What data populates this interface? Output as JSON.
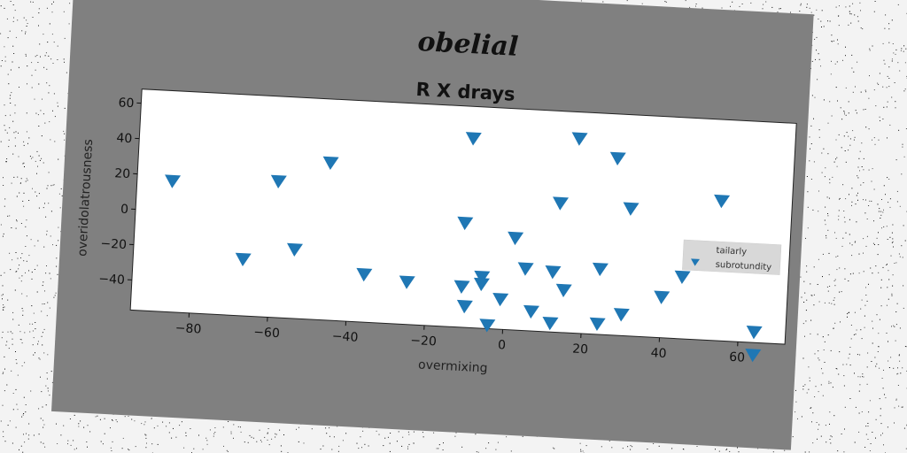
{
  "figure": {
    "suptitle": "obelial",
    "frame_color": "#808080",
    "background_color": "#f3f3f3"
  },
  "chart_data": {
    "type": "scatter",
    "title": "R X drays",
    "xlabel": "overmixing",
    "ylabel": "overidolatrousness",
    "xlim": [
      -95,
      72
    ],
    "ylim": [
      -57,
      68
    ],
    "xticks": [
      -80,
      -60,
      -40,
      -20,
      0,
      20,
      40,
      60
    ],
    "yticks": [
      -40,
      -20,
      0,
      20,
      40,
      60
    ],
    "grid": false,
    "legend": {
      "placement": "center-right",
      "entries": [
        "tailarly",
        "subrotundity"
      ]
    },
    "series": [
      {
        "name": "tailarly",
        "marker": "none",
        "color": "#808080",
        "x": [],
        "y": []
      },
      {
        "name": "subrotundity",
        "marker": "triangle-down",
        "color": "#1f77b4",
        "x": [
          -86,
          -67,
          -59,
          -54,
          -46,
          -36,
          -25,
          -11,
          -11,
          -10,
          -10,
          -6,
          -6,
          -4,
          -1,
          2,
          5,
          7,
          12,
          12,
          13,
          15,
          17,
          24,
          24,
          27,
          30,
          31,
          40,
          45,
          54,
          64,
          64
        ],
        "y": [
          17,
          -25,
          20,
          -18,
          32,
          -30,
          -33,
          2,
          -34,
          -45,
          50,
          -28,
          -32,
          -55,
          -40,
          -5,
          -22,
          -46,
          -52,
          -23,
          16,
          -33,
          53,
          -51,
          -20,
          43,
          -45,
          15,
          -34,
          -22,
          22,
          -51,
          -64
        ]
      }
    ]
  }
}
